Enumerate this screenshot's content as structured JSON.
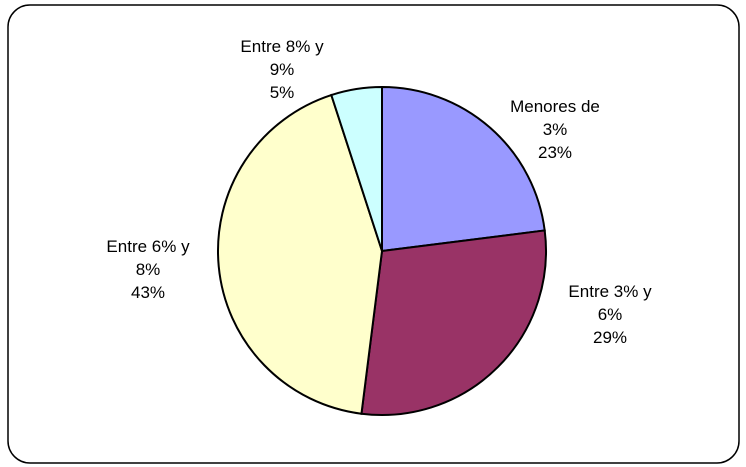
{
  "chart_data": {
    "type": "pie",
    "categories": [
      "Menores de 3%",
      "Entre 3% y 6%",
      "Entre 6% y 8%",
      "Entre 8% y 9%"
    ],
    "values": [
      23,
      29,
      43,
      5
    ],
    "value_labels": [
      "23%",
      "29%",
      "43%",
      "5%"
    ],
    "colors": [
      "#9999ff",
      "#993366",
      "#ffffcc",
      "#ccffff"
    ]
  }
}
